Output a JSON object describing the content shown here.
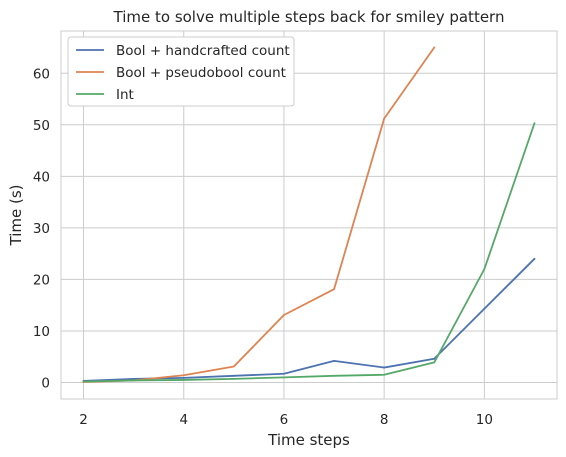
{
  "chart_data": {
    "type": "line",
    "title": "Time to solve multiple steps back for smiley pattern",
    "xlabel": "Time steps",
    "ylabel": "Time (s)",
    "xlim": [
      1.55,
      11.45
    ],
    "ylim": [
      -3.2,
      68.2
    ],
    "xticks": [
      2,
      4,
      6,
      8,
      10
    ],
    "yticks": [
      0,
      10,
      20,
      30,
      40,
      50,
      60
    ],
    "grid": true,
    "legend_position": "top-left",
    "series": [
      {
        "name": "Bool + handcrafted count",
        "color": "#4c72b0",
        "x": [
          2,
          3,
          4,
          5,
          6,
          7,
          8,
          9,
          10,
          11
        ],
        "y": [
          0.3,
          0.7,
          0.9,
          1.3,
          1.7,
          4.2,
          2.9,
          4.6,
          14.3,
          24.0
        ]
      },
      {
        "name": "Bool + pseudobool count",
        "color": "#dd8452",
        "x": [
          2,
          3,
          4,
          5,
          6,
          7,
          8,
          9
        ],
        "y": [
          0.1,
          0.4,
          1.4,
          3.1,
          13.1,
          18.1,
          51.2,
          65.0
        ]
      },
      {
        "name": "Int",
        "color": "#55a868",
        "x": [
          2,
          3,
          4,
          5,
          6,
          7,
          8,
          9,
          10,
          11
        ],
        "y": [
          0.2,
          0.4,
          0.5,
          0.7,
          1.0,
          1.3,
          1.5,
          3.9,
          22.0,
          50.3
        ]
      }
    ]
  }
}
